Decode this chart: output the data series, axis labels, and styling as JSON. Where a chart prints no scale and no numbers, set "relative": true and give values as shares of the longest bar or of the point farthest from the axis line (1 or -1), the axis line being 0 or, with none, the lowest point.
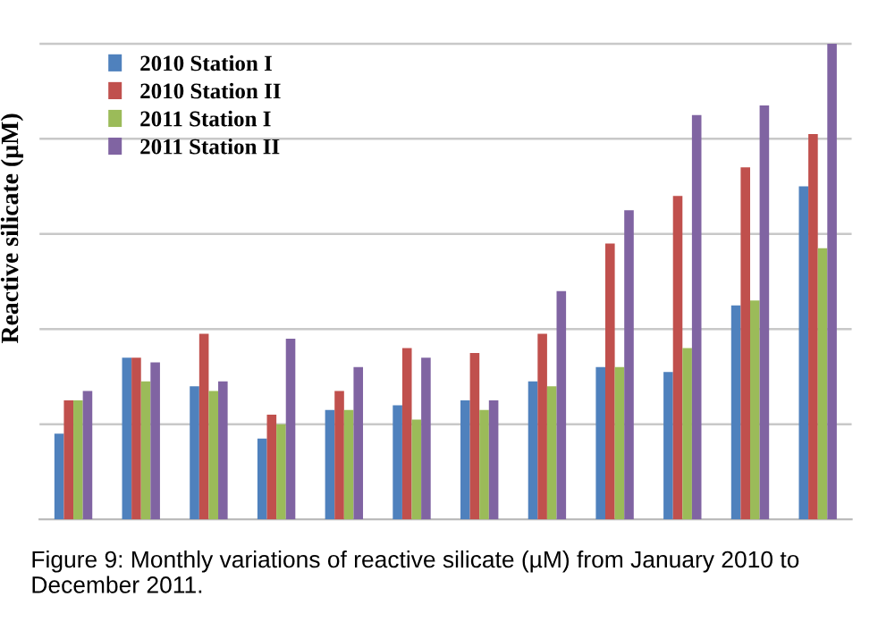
{
  "chart_data": {
    "type": "bar",
    "relative": true,
    "ylabel": "Reactive silicate (µM)",
    "categories": [
      null,
      null,
      null,
      null,
      null,
      null,
      null,
      null,
      null,
      null,
      null,
      null
    ],
    "series": [
      {
        "name": "2010 Station I",
        "color": "#4f81bd",
        "values": [
          0.18,
          0.34,
          0.28,
          0.17,
          0.23,
          0.24,
          0.25,
          0.29,
          0.32,
          0.31,
          0.45,
          0.7
        ]
      },
      {
        "name": "2010 Station II",
        "color": "#c0504d",
        "values": [
          0.25,
          0.34,
          0.39,
          0.22,
          0.27,
          0.36,
          0.35,
          0.39,
          0.58,
          0.68,
          0.74,
          0.81
        ]
      },
      {
        "name": "2011 Station I",
        "color": "#9bbb59",
        "values": [
          0.25,
          0.29,
          0.27,
          0.2,
          0.23,
          0.21,
          0.23,
          0.28,
          0.32,
          0.36,
          0.46,
          0.57
        ]
      },
      {
        "name": "2011 Station II",
        "color": "#8064a2",
        "values": [
          0.27,
          0.33,
          0.29,
          0.38,
          0.32,
          0.34,
          0.25,
          0.48,
          0.65,
          0.85,
          0.87,
          1
        ]
      }
    ],
    "grid": "y",
    "legend": "top left",
    "annotations": [
      "Figure 9: Monthly variations of reactive silicate (µM) from January 2010 to December 2011."
    ]
  }
}
